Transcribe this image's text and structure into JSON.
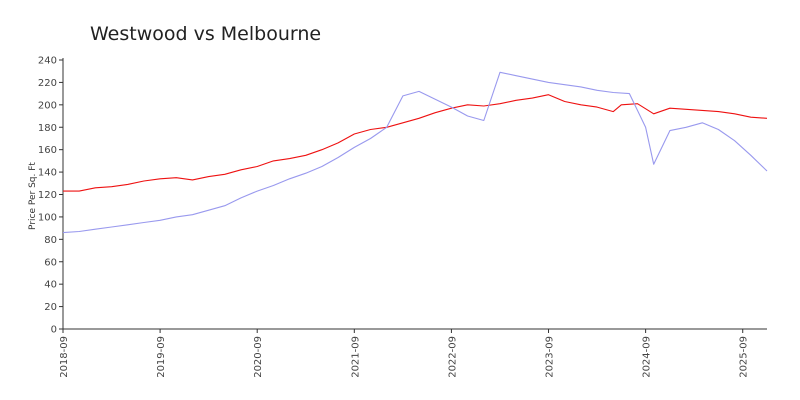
{
  "chart_data": {
    "type": "line",
    "title": "Westwood vs Melbourne",
    "xlabel": "",
    "ylabel": "Price Per Sq. Ft",
    "ylim": [
      0,
      240
    ],
    "xlim": [
      "2018-09",
      "2025-12"
    ],
    "yticks": [
      "0",
      "20",
      "40",
      "60",
      "80",
      "100",
      "120",
      "140",
      "160",
      "180",
      "200",
      "220",
      "240"
    ],
    "xticks": [
      "2018-09",
      "2019-09",
      "2020-09",
      "2021-09",
      "2022-09",
      "2023-09",
      "2024-09",
      "2025-09"
    ],
    "grid": false,
    "legend": "none",
    "series": [
      {
        "color": "#ee1111",
        "points": [
          [
            "2018-09",
            123
          ],
          [
            "2018-11",
            123
          ],
          [
            "2019-01",
            126
          ],
          [
            "2019-03",
            127
          ],
          [
            "2019-05",
            129
          ],
          [
            "2019-07",
            132
          ],
          [
            "2019-09",
            134
          ],
          [
            "2019-11",
            135
          ],
          [
            "2020-01",
            133
          ],
          [
            "2020-03",
            136
          ],
          [
            "2020-05",
            138
          ],
          [
            "2020-07",
            142
          ],
          [
            "2020-09",
            145
          ],
          [
            "2020-11",
            150
          ],
          [
            "2021-01",
            152
          ],
          [
            "2021-03",
            155
          ],
          [
            "2021-05",
            160
          ],
          [
            "2021-07",
            166
          ],
          [
            "2021-09",
            174
          ],
          [
            "2021-11",
            178
          ],
          [
            "2022-01",
            180
          ],
          [
            "2022-03",
            184
          ],
          [
            "2022-05",
            188
          ],
          [
            "2022-07",
            193
          ],
          [
            "2022-09",
            197
          ],
          [
            "2022-11",
            200
          ],
          [
            "2023-01",
            199
          ],
          [
            "2023-03",
            201
          ],
          [
            "2023-05",
            204
          ],
          [
            "2023-07",
            206
          ],
          [
            "2023-09",
            209
          ],
          [
            "2023-11",
            203
          ],
          [
            "2024-01",
            200
          ],
          [
            "2024-03",
            198
          ],
          [
            "2024-05",
            194
          ],
          [
            "2024-06",
            200
          ],
          [
            "2024-08",
            201
          ],
          [
            "2024-10",
            192
          ],
          [
            "2024-12",
            197
          ],
          [
            "2025-02",
            196
          ],
          [
            "2025-04",
            195
          ],
          [
            "2025-06",
            194
          ],
          [
            "2025-08",
            192
          ],
          [
            "2025-10",
            189
          ],
          [
            "2025-12",
            188
          ]
        ]
      },
      {
        "color": "#9999ee",
        "points": [
          [
            "2018-09",
            86
          ],
          [
            "2018-11",
            87
          ],
          [
            "2019-01",
            89
          ],
          [
            "2019-03",
            91
          ],
          [
            "2019-05",
            93
          ],
          [
            "2019-07",
            95
          ],
          [
            "2019-09",
            97
          ],
          [
            "2019-11",
            100
          ],
          [
            "2020-01",
            102
          ],
          [
            "2020-03",
            106
          ],
          [
            "2020-05",
            110
          ],
          [
            "2020-07",
            117
          ],
          [
            "2020-09",
            123
          ],
          [
            "2020-11",
            128
          ],
          [
            "2021-01",
            134
          ],
          [
            "2021-03",
            139
          ],
          [
            "2021-05",
            145
          ],
          [
            "2021-07",
            153
          ],
          [
            "2021-09",
            162
          ],
          [
            "2021-11",
            170
          ],
          [
            "2022-01",
            180
          ],
          [
            "2022-03",
            208
          ],
          [
            "2022-05",
            212
          ],
          [
            "2022-07",
            205
          ],
          [
            "2022-09",
            198
          ],
          [
            "2022-11",
            190
          ],
          [
            "2023-01",
            186
          ],
          [
            "2023-03",
            229
          ],
          [
            "2023-05",
            226
          ],
          [
            "2023-07",
            223
          ],
          [
            "2023-09",
            220
          ],
          [
            "2023-11",
            218
          ],
          [
            "2024-01",
            216
          ],
          [
            "2024-03",
            213
          ],
          [
            "2024-05",
            211
          ],
          [
            "2024-07",
            210
          ],
          [
            "2024-09",
            180
          ],
          [
            "2024-10",
            147
          ],
          [
            "2024-12",
            177
          ],
          [
            "2025-02",
            180
          ],
          [
            "2025-04",
            184
          ],
          [
            "2025-06",
            178
          ],
          [
            "2025-08",
            168
          ],
          [
            "2025-10",
            155
          ],
          [
            "2025-12",
            141
          ]
        ]
      }
    ]
  }
}
